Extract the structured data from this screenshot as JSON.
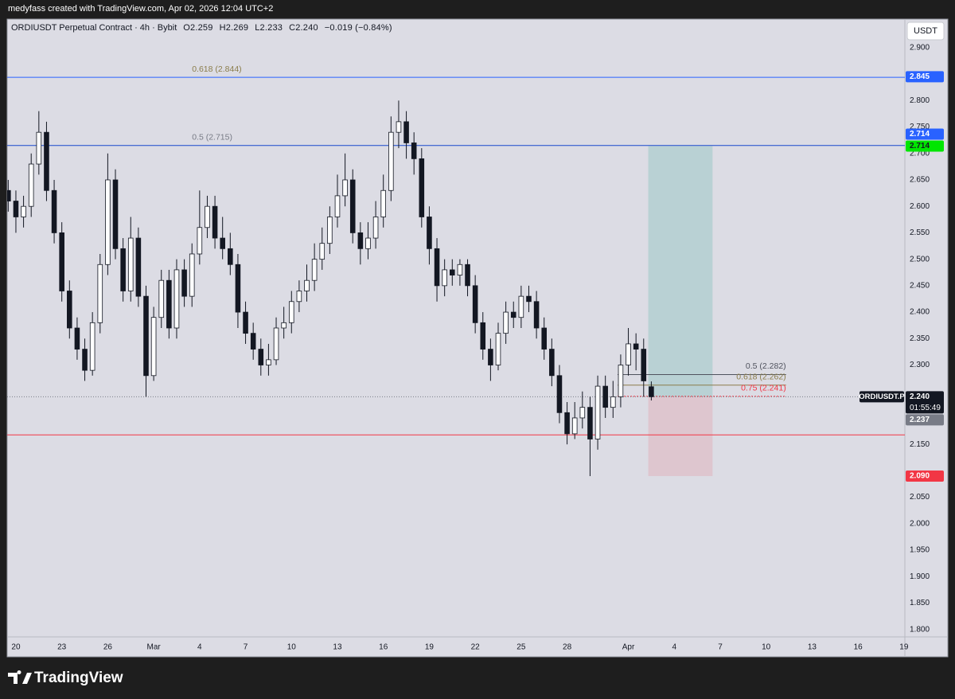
{
  "header": {
    "caption": "medyfass created with TradingView.com, Apr 02, 2026 12:04 UTC+2"
  },
  "footer": {
    "brand": "TradingView"
  },
  "chart_data": {
    "type": "candlestick",
    "title": "ORDIUSDT Perpetual Contract · 4h · Bybit",
    "legend_values": [
      "O2.259",
      "H2.269",
      "L2.233",
      "C2.240",
      "−0.019 (−0.84%)"
    ],
    "currency": "USDT",
    "up_color": "#ffffff",
    "down_color": "#131722",
    "wick_color": "#131722",
    "x": [
      -0.5,
      0,
      0.5,
      1,
      1.5,
      2,
      2.5,
      3,
      3.5,
      4,
      4.5,
      5,
      5.5,
      6,
      6.5,
      7,
      7.5,
      8,
      8.5,
      9,
      9.5,
      10,
      10.5,
      11,
      11.5,
      12,
      12.5,
      13,
      13.5,
      14,
      14.5,
      15,
      15.5,
      16,
      16.5,
      17,
      17.5,
      18,
      18.5,
      19,
      19.5,
      20,
      20.5,
      21,
      21.5,
      22,
      22.5,
      23,
      23.5,
      24,
      24.5,
      25,
      25.5,
      26,
      26.5,
      27,
      27.5,
      28,
      28.5,
      29,
      29.5,
      30,
      30.5,
      31,
      31.5,
      32,
      32.5,
      33,
      33.5,
      34,
      34.5,
      35,
      35.5,
      36,
      36.5,
      37,
      37.5,
      38,
      38.5,
      39,
      39.5,
      40,
      40.5,
      41,
      41.5
    ],
    "open": [
      2.63,
      2.61,
      2.58,
      2.6,
      2.68,
      2.74,
      2.63,
      2.55,
      2.44,
      2.37,
      2.33,
      2.29,
      2.38,
      2.49,
      2.65,
      2.52,
      2.44,
      2.54,
      2.43,
      2.28,
      2.39,
      2.46,
      2.37,
      2.48,
      2.43,
      2.51,
      2.56,
      2.6,
      2.54,
      2.52,
      2.49,
      2.4,
      2.36,
      2.33,
      2.3,
      2.31,
      2.37,
      2.38,
      2.42,
      2.44,
      2.46,
      2.5,
      2.53,
      2.58,
      2.62,
      2.65,
      2.55,
      2.52,
      2.54,
      2.58,
      2.63,
      2.74,
      2.76,
      2.72,
      2.69,
      2.58,
      2.52,
      2.45,
      2.48,
      2.47,
      2.49,
      2.45,
      2.38,
      2.33,
      2.3,
      2.36,
      2.4,
      2.39,
      2.43,
      2.42,
      2.37,
      2.33,
      2.28,
      2.21,
      2.17,
      2.2,
      2.22,
      2.16,
      2.26,
      2.22,
      2.24,
      2.3,
      2.34,
      2.33,
      2.259
    ],
    "high": [
      2.65,
      2.63,
      2.62,
      2.7,
      2.78,
      2.76,
      2.65,
      2.57,
      2.46,
      2.39,
      2.35,
      2.4,
      2.51,
      2.7,
      2.67,
      2.54,
      2.58,
      2.56,
      2.45,
      2.41,
      2.48,
      2.48,
      2.5,
      2.5,
      2.53,
      2.63,
      2.62,
      2.62,
      2.58,
      2.55,
      2.51,
      2.42,
      2.38,
      2.35,
      2.34,
      2.39,
      2.41,
      2.44,
      2.46,
      2.49,
      2.53,
      2.56,
      2.6,
      2.66,
      2.7,
      2.67,
      2.57,
      2.57,
      2.61,
      2.66,
      2.77,
      2.8,
      2.78,
      2.74,
      2.71,
      2.6,
      2.54,
      2.5,
      2.5,
      2.5,
      2.5,
      2.47,
      2.4,
      2.35,
      2.38,
      2.42,
      2.42,
      2.45,
      2.45,
      2.44,
      2.39,
      2.35,
      2.3,
      2.23,
      2.23,
      2.25,
      2.24,
      2.28,
      2.28,
      2.27,
      2.32,
      2.37,
      2.36,
      2.35,
      2.269
    ],
    "low": [
      2.59,
      2.55,
      2.56,
      2.58,
      2.66,
      2.61,
      2.53,
      2.42,
      2.35,
      2.31,
      2.27,
      2.28,
      2.36,
      2.47,
      2.5,
      2.42,
      2.42,
      2.41,
      2.24,
      2.27,
      2.37,
      2.35,
      2.35,
      2.41,
      2.41,
      2.49,
      2.54,
      2.52,
      2.5,
      2.47,
      2.37,
      2.34,
      2.31,
      2.28,
      2.28,
      2.3,
      2.35,
      2.36,
      2.4,
      2.42,
      2.44,
      2.48,
      2.51,
      2.56,
      2.6,
      2.53,
      2.49,
      2.5,
      2.52,
      2.56,
      2.61,
      2.71,
      2.69,
      2.66,
      2.56,
      2.49,
      2.42,
      2.43,
      2.45,
      2.45,
      2.43,
      2.36,
      2.31,
      2.27,
      2.29,
      2.34,
      2.37,
      2.37,
      2.4,
      2.35,
      2.31,
      2.26,
      2.19,
      2.15,
      2.16,
      2.18,
      2.09,
      2.14,
      2.2,
      2.2,
      2.22,
      2.28,
      2.29,
      2.24,
      2.233
    ],
    "close": [
      2.61,
      2.58,
      2.6,
      2.68,
      2.74,
      2.63,
      2.55,
      2.44,
      2.37,
      2.33,
      2.29,
      2.38,
      2.49,
      2.65,
      2.52,
      2.44,
      2.54,
      2.43,
      2.28,
      2.39,
      2.46,
      2.37,
      2.48,
      2.43,
      2.51,
      2.56,
      2.6,
      2.54,
      2.52,
      2.49,
      2.4,
      2.36,
      2.33,
      2.3,
      2.31,
      2.37,
      2.38,
      2.42,
      2.44,
      2.46,
      2.5,
      2.53,
      2.58,
      2.62,
      2.65,
      2.55,
      2.52,
      2.54,
      2.58,
      2.63,
      2.74,
      2.76,
      2.72,
      2.69,
      2.58,
      2.52,
      2.45,
      2.48,
      2.47,
      2.49,
      2.45,
      2.38,
      2.33,
      2.3,
      2.36,
      2.4,
      2.39,
      2.43,
      2.42,
      2.37,
      2.33,
      2.28,
      2.21,
      2.17,
      2.2,
      2.22,
      2.16,
      2.26,
      2.22,
      2.24,
      2.3,
      2.34,
      2.33,
      2.27,
      2.24
    ],
    "xlim": [
      -0.57,
      58.06
    ],
    "xticks": [
      {
        "value": 0,
        "label": "20"
      },
      {
        "value": 3,
        "label": "23"
      },
      {
        "value": 6,
        "label": "26"
      },
      {
        "value": 9,
        "label": "Mar"
      },
      {
        "value": 12,
        "label": "4"
      },
      {
        "value": 15,
        "label": "7"
      },
      {
        "value": 18,
        "label": "10"
      },
      {
        "value": 21,
        "label": "13"
      },
      {
        "value": 24,
        "label": "16"
      },
      {
        "value": 27,
        "label": "19"
      },
      {
        "value": 30,
        "label": "22"
      },
      {
        "value": 33,
        "label": "25"
      },
      {
        "value": 36,
        "label": "28"
      },
      {
        "value": 40,
        "label": "Apr"
      },
      {
        "value": 43,
        "label": "4"
      },
      {
        "value": 46,
        "label": "7"
      },
      {
        "value": 49,
        "label": "10"
      },
      {
        "value": 52,
        "label": "13"
      },
      {
        "value": 55,
        "label": "16"
      },
      {
        "value": 58,
        "label": "19"
      }
    ],
    "ylim": [
      1.786,
      2.954
    ],
    "yticks": [
      {
        "value": 2.9,
        "label": "2.900"
      },
      {
        "value": 2.8,
        "label": "2.800"
      },
      {
        "value": 2.75,
        "label": "2.750"
      },
      {
        "value": 2.7,
        "label": "2.700"
      },
      {
        "value": 2.65,
        "label": "2.650"
      },
      {
        "value": 2.6,
        "label": "2.600"
      },
      {
        "value": 2.55,
        "label": "2.550"
      },
      {
        "value": 2.5,
        "label": "2.500"
      },
      {
        "value": 2.45,
        "label": "2.450"
      },
      {
        "value": 2.4,
        "label": "2.400"
      },
      {
        "value": 2.35,
        "label": "2.350"
      },
      {
        "value": 2.3,
        "label": "2.300"
      },
      {
        "value": 2.15,
        "label": "2.150"
      },
      {
        "value": 2.05,
        "label": "2.050"
      },
      {
        "value": 2.0,
        "label": "2.000"
      },
      {
        "value": 1.95,
        "label": "1.950"
      },
      {
        "value": 1.9,
        "label": "1.900"
      },
      {
        "value": 1.85,
        "label": "1.850"
      },
      {
        "value": 1.8,
        "label": "1.800"
      }
    ],
    "grid": false,
    "levels": [
      {
        "value": 2.844,
        "label": "0.618 (2.844)",
        "color": "#2962ff",
        "label_color": "#8b7d4b",
        "x_start": -0.57,
        "x_end": 58.06,
        "label_x": 11.5
      },
      {
        "value": 2.715,
        "label": "0.5 (2.715)",
        "color": "#1848cc",
        "label_color": "#787b86",
        "x_start": -0.57,
        "x_end": 58.06,
        "label_x": 11.5
      },
      {
        "value": 2.168,
        "color": "#f23645",
        "x_start": -0.57,
        "x_end": 58.06
      },
      {
        "value": 2.282,
        "label": "0.5 (2.282)",
        "color": "#50535e",
        "label_color": "#50535e",
        "x_start": 39.3,
        "x_end": 50.3,
        "label_x": 50.3
      },
      {
        "value": 2.262,
        "label": "0.618 (2.262)",
        "color": "#8b7d4b",
        "label_color": "#8b7d4b",
        "x_start": 39.3,
        "x_end": 50.3,
        "label_x": 50.3
      },
      {
        "value": 2.241,
        "label": "0.75 (2.241)",
        "color": "#f23645",
        "label_color": "#f23645",
        "x_start": 39.3,
        "x_end": 50.3,
        "label_x": 50.3,
        "dashed": true
      }
    ],
    "position": {
      "entry": 2.24,
      "target": 2.714,
      "stop": 2.09,
      "x_start": 41.3,
      "x_end": 45.5,
      "target_color": "#089981",
      "stop_color": "#f23645"
    },
    "price_labels": [
      {
        "value": 2.845,
        "label": "2.845",
        "color": "#2962ff"
      },
      {
        "value": 2.714,
        "label": "2.714",
        "color": "#00e600",
        "text_color": "#131722"
      },
      {
        "value": 2.714,
        "label": "2.714",
        "color": "#2962ff"
      },
      {
        "value": 2.24,
        "label": "2.240",
        "color": "#131722",
        "symbol": "ORDIUSDT.P",
        "countdown": "01:55:49"
      },
      {
        "value": 2.237,
        "label": "2.237",
        "color": "#787b86"
      },
      {
        "value": 2.09,
        "label": "2.090",
        "color": "#f23645"
      }
    ]
  }
}
